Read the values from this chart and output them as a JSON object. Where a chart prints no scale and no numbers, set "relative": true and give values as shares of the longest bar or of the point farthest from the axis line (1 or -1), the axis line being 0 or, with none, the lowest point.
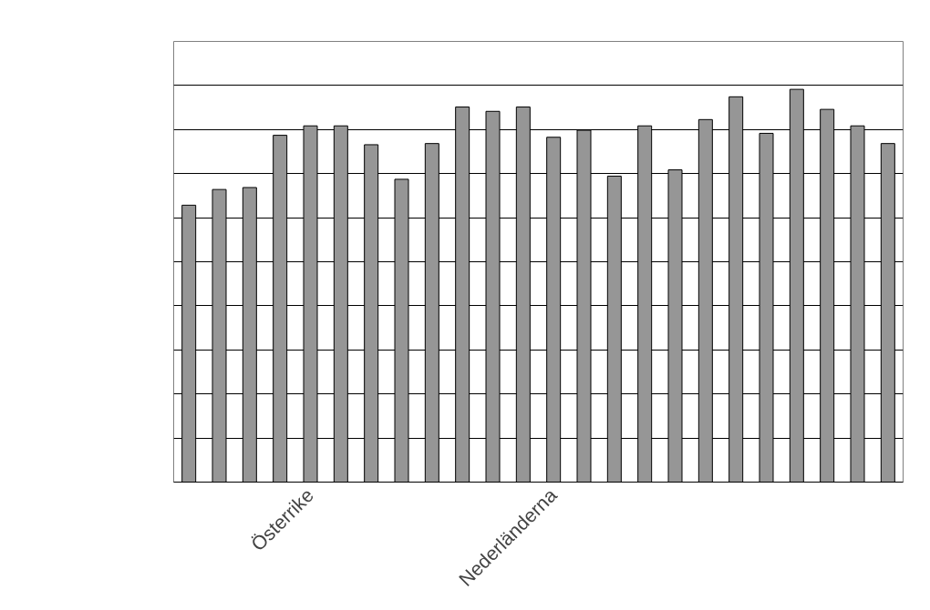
{
  "chart_data": {
    "type": "bar",
    "relative": true,
    "grid": "y",
    "categories": [
      null,
      null,
      null,
      null,
      "Österrike",
      null,
      null,
      null,
      null,
      null,
      null,
      null,
      "Nederländerna",
      null,
      null,
      null,
      null,
      null,
      null,
      null,
      null,
      null,
      null,
      null
    ],
    "series": [
      {
        "color": "#969696",
        "values": [
          0.705,
          0.745,
          0.75,
          0.883,
          0.907,
          0.907,
          0.859,
          0.771,
          0.862,
          0.955,
          0.944,
          0.955,
          0.878,
          0.896,
          0.779,
          0.907,
          0.795,
          0.923,
          0.981,
          0.888,
          1,
          0.949,
          0.907,
          0.862
        ]
      }
    ]
  }
}
